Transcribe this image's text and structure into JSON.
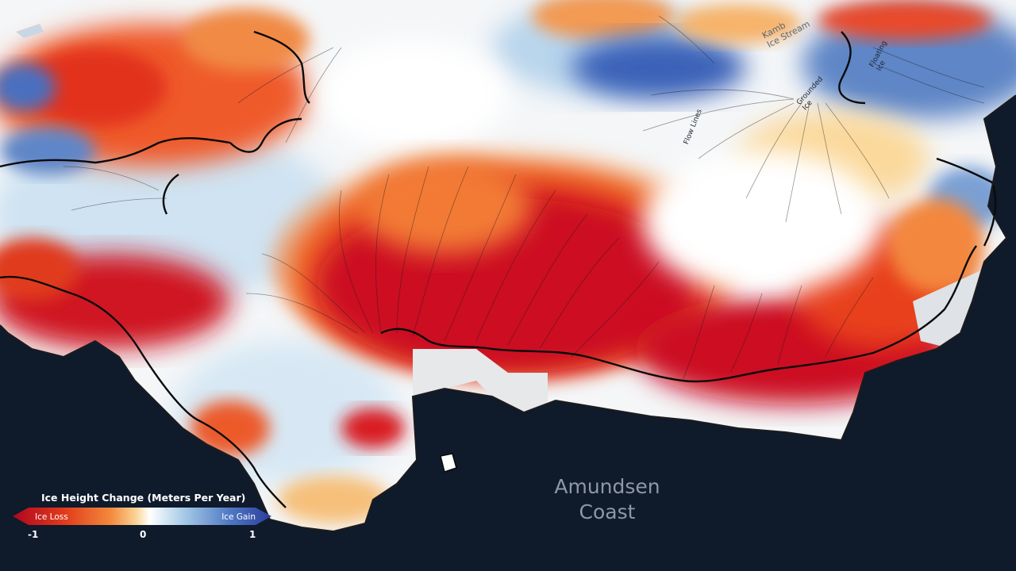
{
  "region_label": {
    "line1": "Amundsen",
    "line2": "Coast"
  },
  "features": {
    "kamb_line1": "Kamb",
    "kamb_line2": "Ice Stream",
    "floating_line1": "Floating",
    "floating_line2": "Ice",
    "grounded_line1": "Grounded",
    "grounded_line2": "Ice",
    "flow_lines": "Flow Lines"
  },
  "legend": {
    "title": "Ice Height Change (Meters Per Year)",
    "loss_label": "Ice Loss",
    "gain_label": "Ice Gain",
    "tick_min": "-1",
    "tick_mid": "0",
    "tick_max": "1",
    "colors": [
      "#b0061f",
      "#e03b1c",
      "#f48a3c",
      "#fbd79a",
      "#ffffff",
      "#a7cbe6",
      "#4f78c4",
      "#2b3c9c"
    ]
  },
  "colors": {
    "ocean": "#0f1a2b",
    "ice_loss": "#c8101c",
    "ice_gain": "#3d5bb5",
    "neutral": "#f6f7f8",
    "grounding_line": "#0a0a0a"
  },
  "icons": {
    "left_arrow": "legend-left-arrow-icon",
    "right_arrow": "legend-right-arrow-icon"
  }
}
